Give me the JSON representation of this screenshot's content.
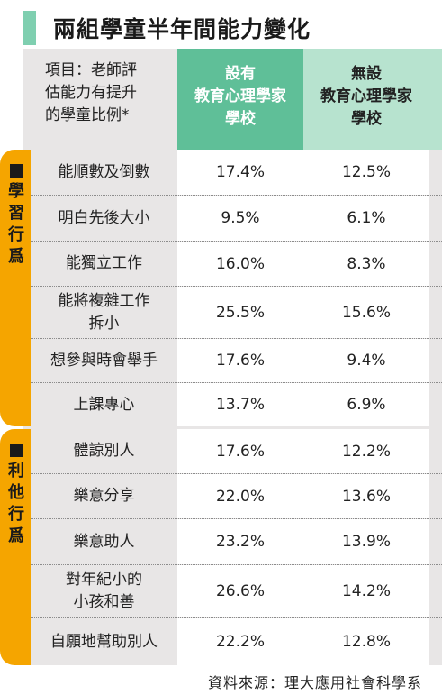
{
  "title": "兩組學童半年間能力變化",
  "header": {
    "item": [
      "項目：老師評",
      "估能力有提升",
      "的學童比例*"
    ],
    "col1": [
      "設有",
      "教育心理學家",
      "學校"
    ],
    "col2": [
      "無設",
      "教育心理學家",
      "學校"
    ]
  },
  "groups": [
    {
      "label": [
        "學",
        "習",
        "行",
        "爲"
      ]
    },
    {
      "label": [
        "利",
        "他",
        "行",
        "爲"
      ]
    }
  ],
  "rows": [
    {
      "label": [
        "能順數及倒數"
      ],
      "with": "17.4%",
      "without": "12.5%"
    },
    {
      "label": [
        "明白先後大小"
      ],
      "with": "9.5%",
      "without": "6.1%"
    },
    {
      "label": [
        "能獨立工作"
      ],
      "with": "16.0%",
      "without": "8.3%"
    },
    {
      "label": [
        "能將複雜工作",
        "拆小"
      ],
      "with": "25.5%",
      "without": "15.6%"
    },
    {
      "label": [
        "想參與時會舉手"
      ],
      "with": "17.6%",
      "without": "9.4%"
    },
    {
      "label": [
        "上課專心"
      ],
      "with": "13.7%",
      "without": "6.9%"
    },
    {
      "label": [
        "體諒別人"
      ],
      "with": "17.6%",
      "without": "12.2%"
    },
    {
      "label": [
        "樂意分享"
      ],
      "with": "22.0%",
      "without": "13.6%"
    },
    {
      "label": [
        "樂意助人"
      ],
      "with": "23.2%",
      "without": "13.9%"
    },
    {
      "label": [
        "對年紀小的",
        "小孩和善"
      ],
      "with": "26.6%",
      "without": "14.2%"
    },
    {
      "label": [
        "自願地幫助別人"
      ],
      "with": "22.2%",
      "without": "12.8%"
    }
  ],
  "source": "資料來源：理大應用社會科學系",
  "colors": {
    "accent": "#7fcfb0",
    "col1_header": "#5fbf98",
    "col2_header": "#b7e3cf",
    "side_band": "#f5a500",
    "table_bg": "#e8e6e6"
  }
}
